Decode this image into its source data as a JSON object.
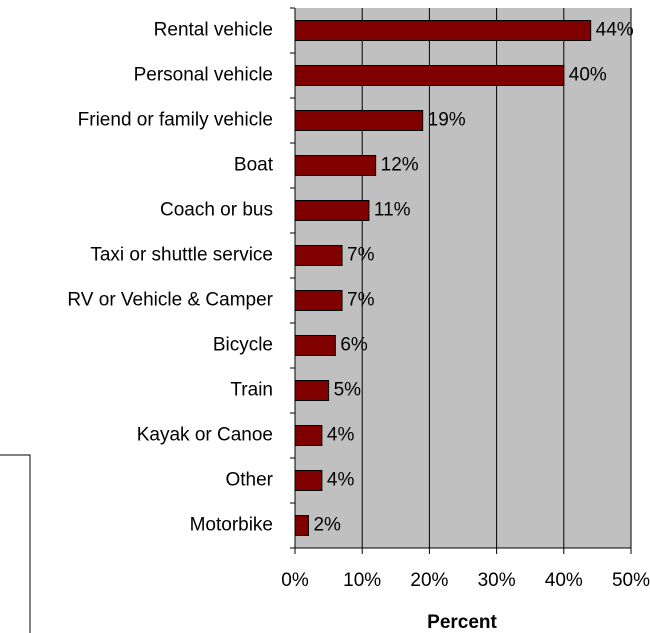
{
  "chart_data": {
    "type": "bar",
    "orientation": "horizontal",
    "categories": [
      "Rental vehicle",
      "Personal vehicle",
      "Friend or family vehicle",
      "Boat",
      "Coach or bus",
      "Taxi or shuttle service",
      "RV or Vehicle & Camper",
      "Bicycle",
      "Train",
      "Kayak or Canoe",
      "Other",
      "Motorbike"
    ],
    "values": [
      44,
      40,
      19,
      12,
      11,
      7,
      7,
      6,
      5,
      4,
      4,
      2
    ],
    "value_labels": [
      "44%",
      "40%",
      "19%",
      "12%",
      "11%",
      "7%",
      "7%",
      "6%",
      "5%",
      "4%",
      "4%",
      "2%"
    ],
    "color": "#800000",
    "xlabel": "Percent",
    "xlim": [
      0,
      50
    ],
    "xticks": [
      {
        "value": 0,
        "label": "0%"
      },
      {
        "value": 10,
        "label": "10%"
      },
      {
        "value": 20,
        "label": "20%"
      },
      {
        "value": 30,
        "label": "30%"
      },
      {
        "value": 40,
        "label": "40%"
      },
      {
        "value": 50,
        "label": "50%"
      }
    ],
    "grid": true
  }
}
